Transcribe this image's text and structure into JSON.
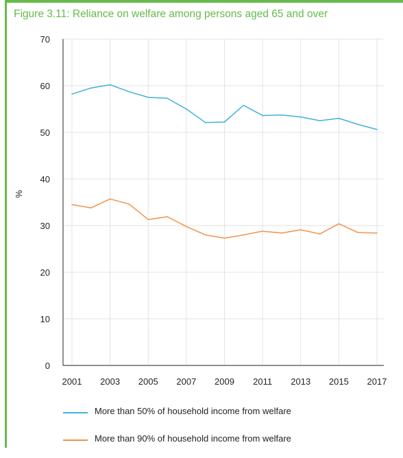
{
  "figure": {
    "title": "Figure 3.11: Reliance on welfare among persons aged 65 and over",
    "accent_color": "#66b94a"
  },
  "chart_data": {
    "type": "line",
    "title": "Figure 3.11: Reliance on welfare among persons aged 65 and over",
    "xlabel": "",
    "ylabel": "%",
    "x": [
      2001,
      2002,
      2003,
      2004,
      2005,
      2006,
      2007,
      2008,
      2009,
      2010,
      2011,
      2012,
      2013,
      2014,
      2015,
      2016,
      2017
    ],
    "x_tick_labels": [
      "2001",
      "2003",
      "2005",
      "2007",
      "2009",
      "2011",
      "2013",
      "2015",
      "2017"
    ],
    "y_tick_labels": [
      "0",
      "10",
      "20",
      "30",
      "40",
      "50",
      "60",
      "70"
    ],
    "ylim": [
      0,
      70
    ],
    "grid": true,
    "legend_position": "bottom",
    "series": [
      {
        "name": "More than 50% of household income from welfare",
        "color": "#3fb0d8",
        "values": [
          58.2,
          59.5,
          60.2,
          58.7,
          57.5,
          57.3,
          55.0,
          52.1,
          52.2,
          55.8,
          53.6,
          53.7,
          53.3,
          52.5,
          53.0,
          51.7,
          50.6
        ]
      },
      {
        "name": "More than 90% of household income from welfare",
        "color": "#f0924a",
        "values": [
          34.5,
          33.8,
          35.7,
          34.6,
          31.3,
          31.9,
          29.8,
          28.0,
          27.3,
          28.0,
          28.8,
          28.4,
          29.1,
          28.2,
          30.4,
          28.5,
          28.4
        ]
      }
    ]
  }
}
